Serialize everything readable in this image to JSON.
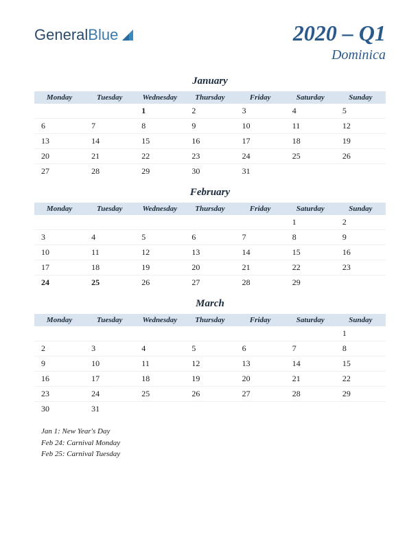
{
  "logo": {
    "part1": "General",
    "part2": "Blue"
  },
  "title": "2020 – Q1",
  "subtitle": "Dominica",
  "colors": {
    "header_bg": "#dae4f0",
    "title_color": "#2a5a8a",
    "holiday_color": "#bb2222",
    "text_color": "#1a1a1a"
  },
  "day_headers": [
    "Monday",
    "Tuesday",
    "Wednesday",
    "Thursday",
    "Friday",
    "Saturday",
    "Sunday"
  ],
  "months": [
    {
      "name": "January",
      "weeks": [
        [
          "",
          "",
          "1",
          "2",
          "3",
          "4",
          "5"
        ],
        [
          "6",
          "7",
          "8",
          "9",
          "10",
          "11",
          "12"
        ],
        [
          "13",
          "14",
          "15",
          "16",
          "17",
          "18",
          "19"
        ],
        [
          "20",
          "21",
          "22",
          "23",
          "24",
          "25",
          "26"
        ],
        [
          "27",
          "28",
          "29",
          "30",
          "31",
          "",
          ""
        ]
      ],
      "holidays": [
        "1"
      ]
    },
    {
      "name": "February",
      "weeks": [
        [
          "",
          "",
          "",
          "",
          "",
          "1",
          "2"
        ],
        [
          "3",
          "4",
          "5",
          "6",
          "7",
          "8",
          "9"
        ],
        [
          "10",
          "11",
          "12",
          "13",
          "14",
          "15",
          "16"
        ],
        [
          "17",
          "18",
          "19",
          "20",
          "21",
          "22",
          "23"
        ],
        [
          "24",
          "25",
          "26",
          "27",
          "28",
          "29",
          ""
        ]
      ],
      "holidays": [
        "24",
        "25"
      ]
    },
    {
      "name": "March",
      "weeks": [
        [
          "",
          "",
          "",
          "",
          "",
          "",
          "1"
        ],
        [
          "2",
          "3",
          "4",
          "5",
          "6",
          "7",
          "8"
        ],
        [
          "9",
          "10",
          "11",
          "12",
          "13",
          "14",
          "15"
        ],
        [
          "16",
          "17",
          "18",
          "19",
          "20",
          "21",
          "22"
        ],
        [
          "23",
          "24",
          "25",
          "26",
          "27",
          "28",
          "29"
        ],
        [
          "30",
          "31",
          "",
          "",
          "",
          "",
          ""
        ]
      ],
      "holidays": []
    }
  ],
  "holiday_notes": [
    "Jan 1: New Year's Day",
    "Feb 24: Carnival Monday",
    "Feb 25: Carnival Tuesday"
  ]
}
